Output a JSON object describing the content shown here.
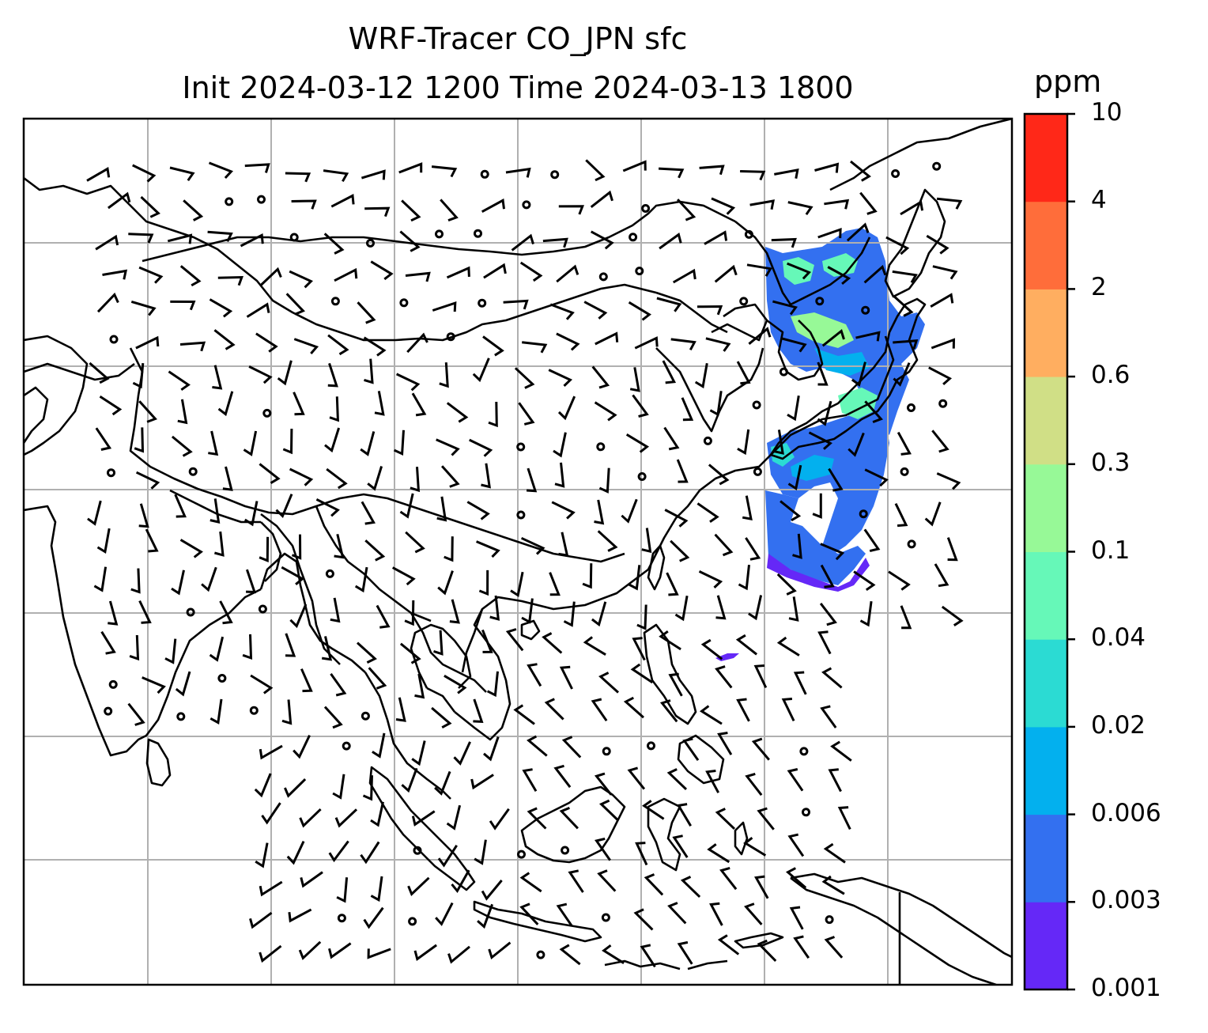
{
  "title": {
    "line1": "WRF-Tracer CO_JPN sfc",
    "line2": "Init 2024-03-12 1200 Time 2024-03-13 1800"
  },
  "colorbar": {
    "unit": "ppm",
    "levels": [
      "0.001",
      "0.003",
      "0.006",
      "0.02",
      "0.04",
      "0.1",
      "0.3",
      "0.6",
      "2",
      "4",
      "10"
    ],
    "colors": [
      "#6528f7",
      "#3370f0",
      "#03b0ee",
      "#2bdbd3",
      "#66f8b8",
      "#97f997",
      "#d0df86",
      "#ffae60",
      "#ff6d3a",
      "#ff2818"
    ]
  },
  "map": {
    "gridline_color": "#b0b0b0",
    "coastline_color": "#000000",
    "wind_barb_color": "#000000"
  }
}
